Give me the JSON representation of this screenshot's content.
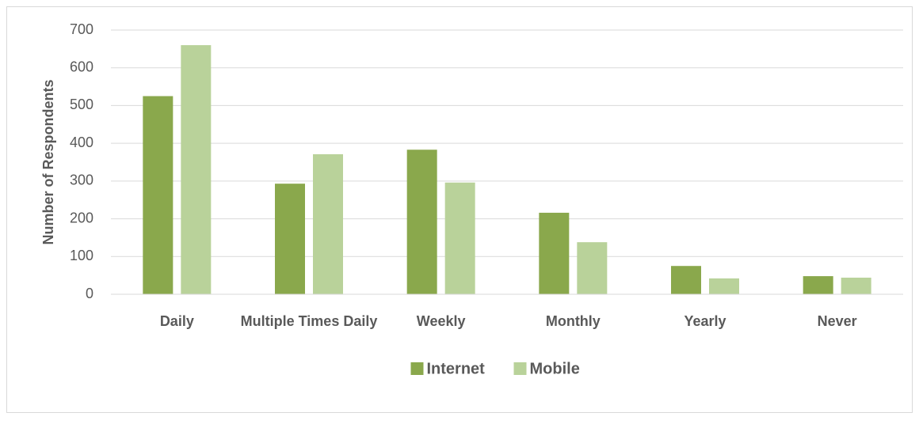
{
  "chart_data": {
    "type": "bar",
    "y_label": "Number of Respondents",
    "categories": [
      "Daily",
      "Multiple Times Daily",
      "Weekly",
      "Monthly",
      "Yearly",
      "Never"
    ],
    "series": [
      {
        "name": "Internet",
        "color": "#8aa84c",
        "values": [
          525,
          293,
          383,
          216,
          75,
          48
        ]
      },
      {
        "name": "Mobile",
        "color": "#b9d29a",
        "values": [
          660,
          371,
          296,
          138,
          42,
          44
        ]
      }
    ],
    "ylim": [
      0,
      700
    ],
    "yticks": [
      0,
      100,
      200,
      300,
      400,
      500,
      600,
      700
    ],
    "grid": true,
    "legend": "bottom"
  }
}
